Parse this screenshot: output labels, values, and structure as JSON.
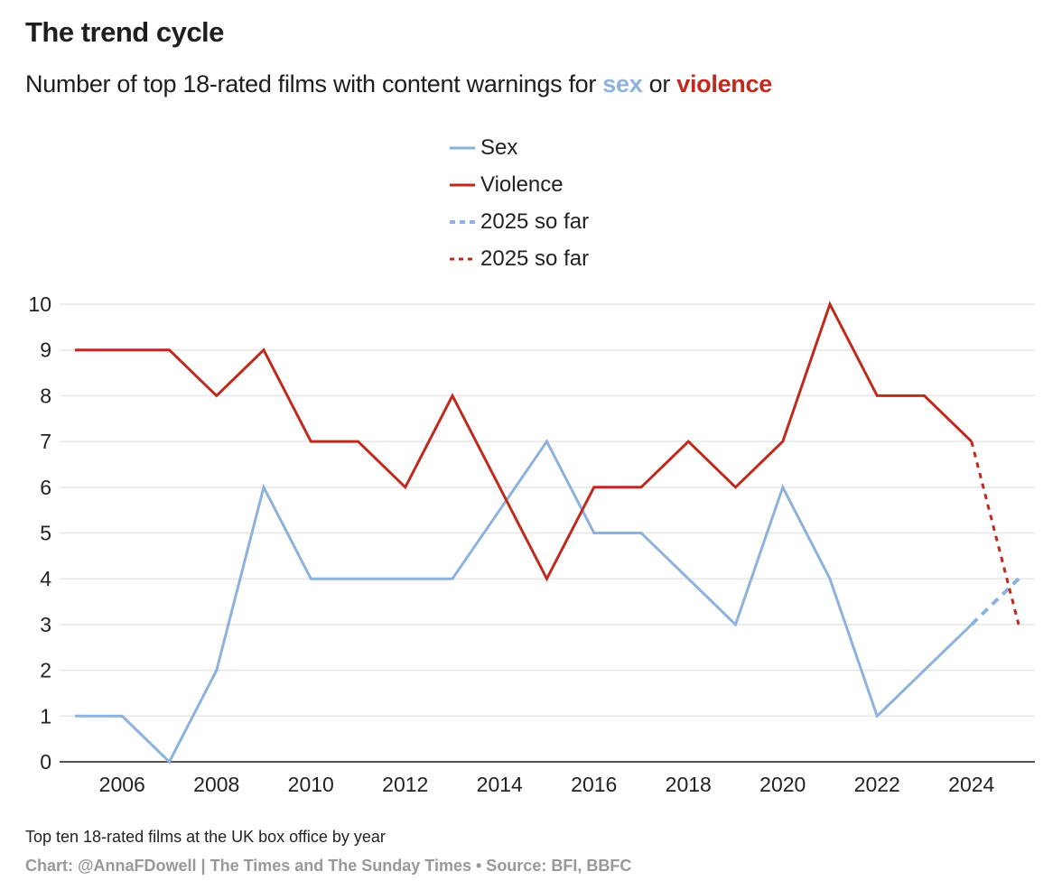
{
  "header": {
    "title": "The trend cycle",
    "subtitle_prefix": "Number of top 18-rated films with content warnings for ",
    "subtitle_sex": "sex",
    "subtitle_or": " or ",
    "subtitle_violence": "violence"
  },
  "footer": {
    "note": "Top ten 18-rated films at the UK box office by year",
    "credit": "Chart: @AnnaFDowell | The Times and The Sunday Times • Source: BFI, BBFC"
  },
  "colors": {
    "sex": "#8cb2dd",
    "violence": "#be2a1e",
    "grid": "#e6e6e6",
    "axis": "#555555"
  },
  "chart_data": {
    "type": "line",
    "title": "The trend cycle",
    "subtitle": "Number of top 18-rated films with content warnings for sex or violence",
    "xlabel": "",
    "ylabel": "",
    "x": [
      2005,
      2006,
      2007,
      2008,
      2009,
      2010,
      2011,
      2012,
      2013,
      2014,
      2015,
      2016,
      2017,
      2018,
      2019,
      2020,
      2021,
      2022,
      2023,
      2024
    ],
    "xlim": [
      2004.7,
      2025.3
    ],
    "ylim": [
      0,
      10
    ],
    "x_ticks": [
      "2006",
      "2008",
      "2010",
      "2012",
      "2014",
      "2016",
      "2018",
      "2020",
      "2022",
      "2024"
    ],
    "y_ticks": [
      "0",
      "1",
      "2",
      "3",
      "4",
      "5",
      "6",
      "7",
      "8",
      "9",
      "10"
    ],
    "grid": true,
    "legend_position": "top-center",
    "series": [
      {
        "name": "Sex",
        "key": "sex",
        "style": "solid",
        "values": [
          1,
          1,
          0,
          2,
          6,
          4,
          4,
          4,
          4,
          null,
          7,
          5,
          5,
          4,
          3,
          6,
          4,
          1,
          2,
          3
        ]
      },
      {
        "name": "Violence",
        "key": "violence",
        "style": "solid",
        "values": [
          9,
          9,
          9,
          8,
          9,
          7,
          7,
          6,
          8,
          6,
          4,
          6,
          6,
          7,
          6,
          7,
          10,
          8,
          8,
          7
        ]
      },
      {
        "name": "2025 so far",
        "key": "sex",
        "style": "dashed",
        "x": [
          2024,
          2025
        ],
        "values": [
          3,
          4
        ]
      },
      {
        "name": "2025 so far",
        "key": "violence",
        "style": "dotted",
        "x": [
          2024,
          2025
        ],
        "values": [
          7,
          3
        ]
      }
    ]
  }
}
